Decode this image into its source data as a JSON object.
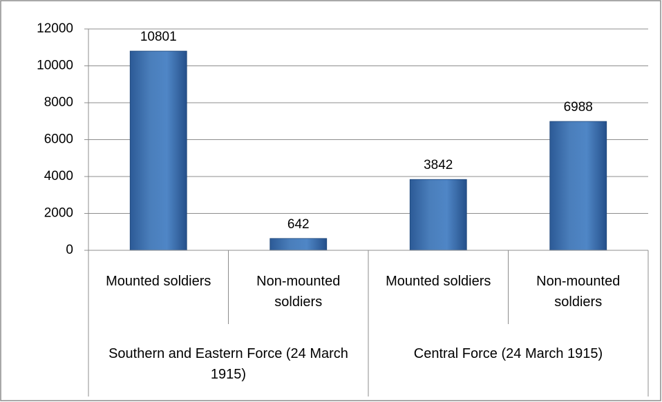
{
  "chart_data": {
    "type": "bar",
    "groups": [
      {
        "name": "Southern and Eastern Force (24 March 1915)",
        "categories": [
          "Mounted soldiers",
          "Non-mounted soldiers"
        ],
        "values": [
          10801,
          642
        ]
      },
      {
        "name": "Central Force (24 March 1915)",
        "categories": [
          "Mounted soldiers",
          "Non-mounted soldiers"
        ],
        "values": [
          3842,
          6988
        ]
      }
    ],
    "color": "#4a7ebb",
    "ylim": [
      0,
      12000
    ],
    "yticks": [
      0,
      2000,
      4000,
      6000,
      8000,
      10000,
      12000
    ],
    "grid": true
  }
}
